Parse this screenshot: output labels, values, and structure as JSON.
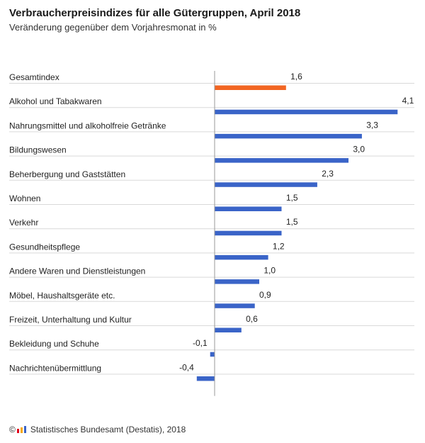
{
  "title": "Verbraucherpreisindizes für alle Gütergruppen, April 2018",
  "subtitle": "Veränderung gegenüber dem Vorjahresmonat in %",
  "footer": {
    "copyright_symbol": "©",
    "source": "Statistisches Bundesamt (Destatis), 2018",
    "logo_icon": "destatis-logo-icon"
  },
  "colors": {
    "highlight": "#f26522",
    "bar": "#3a64c8",
    "gridline": "#d9d9d9",
    "axis": "#999999",
    "logo": [
      "#e2001a",
      "#f7a600",
      "#3a64c8"
    ]
  },
  "chart_data": {
    "type": "bar",
    "orientation": "horizontal",
    "title": "Verbraucherpreisindizes für alle Gütergruppen, April 2018",
    "subtitle": "Veränderung gegenüber dem Vorjahresmonat in %",
    "xlabel": "",
    "ylabel": "",
    "xlim": [
      -0.4,
      4.1
    ],
    "grid": false,
    "categories": [
      "Gesamtindex",
      "Alkohol und Tabakwaren",
      "Nahrungsmittel und alkoholfreie Getränke",
      "Bildungswesen",
      "Beherbergung und Gaststätten",
      "Wohnen",
      "Verkehr",
      "Gesundheitspflege",
      "Andere Waren und Dienstleistungen",
      "Möbel, Haushaltsgeräte etc.",
      "Freizeit, Unterhaltung und Kultur",
      "Bekleidung und Schuhe",
      "Nachrichtenübermittlung"
    ],
    "values": [
      1.6,
      4.1,
      3.3,
      3.0,
      2.3,
      1.5,
      1.5,
      1.2,
      1.0,
      0.9,
      0.6,
      -0.1,
      -0.4
    ],
    "value_labels": [
      "1,6",
      "4,1",
      "3,3",
      "3,0",
      "2,3",
      "1,5",
      "1,5",
      "1,2",
      "1,0",
      "0,9",
      "0,6",
      "-0,1",
      "-0,4"
    ],
    "highlighted_category": "Gesamtindex"
  }
}
